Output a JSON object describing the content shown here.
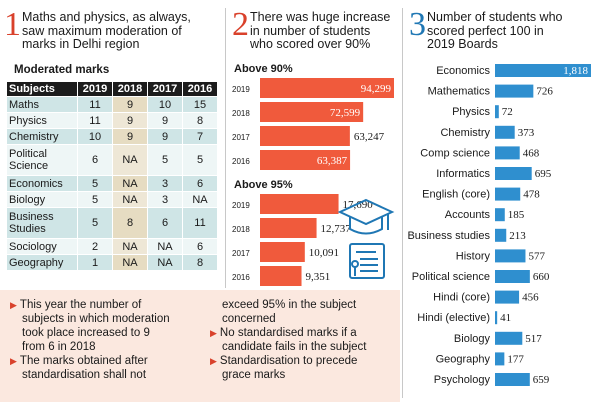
{
  "colors": {
    "red": "#f05a3c",
    "blue": "#2f8fcf",
    "table_dark": "#1c1c1c",
    "note_bg": "#fbe8df"
  },
  "panel1": {
    "number": "1",
    "intro": [
      "Maths and physics, as always,",
      "saw maximum moderation of",
      "marks in Delhi region"
    ],
    "table_title": "Moderated marks",
    "headers": [
      "Subjects",
      "2019",
      "2018",
      "2017",
      "2016"
    ],
    "rows": [
      [
        "Maths",
        "11",
        "9",
        "10",
        "15"
      ],
      [
        "Physics",
        "11",
        "9",
        "9",
        "8"
      ],
      [
        "Chemistry",
        "10",
        "9",
        "9",
        "7"
      ],
      [
        "Political Science",
        "6",
        "NA",
        "5",
        "5"
      ],
      [
        "Economics",
        "5",
        "NA",
        "3",
        "6"
      ],
      [
        "Biology",
        "5",
        "NA",
        "3",
        "NA"
      ],
      [
        "Business Studies",
        "5",
        "8",
        "6",
        "11"
      ],
      [
        "Sociology",
        "2",
        "NA",
        "NA",
        "6"
      ],
      [
        "Geography",
        "1",
        "NA",
        "NA",
        "8"
      ]
    ]
  },
  "notes": {
    "col1": [
      {
        "bullet": true,
        "text": "This year the number of"
      },
      {
        "bullet": false,
        "text": "subjects in which moderation"
      },
      {
        "bullet": false,
        "text": "took place increased to 9"
      },
      {
        "bullet": false,
        "text": "from 6 in 2018"
      },
      {
        "bullet": true,
        "text": "The marks obtained after"
      },
      {
        "bullet": false,
        "text": "standardisation shall not"
      }
    ],
    "col2": [
      {
        "bullet": false,
        "text": "exceed 95% in the subject"
      },
      {
        "bullet": false,
        "text": "concerned"
      },
      {
        "bullet": true,
        "text": "No standardised marks if a"
      },
      {
        "bullet": false,
        "text": "candidate fails in the subject"
      },
      {
        "bullet": true,
        "text": "Standardisation to precede"
      },
      {
        "bullet": false,
        "text": "grace marks"
      }
    ]
  },
  "panel2": {
    "number": "2",
    "intro": [
      "There was huge increase",
      "in number of students",
      "who scored over 90%"
    ],
    "icon": "graduation-cap-and-certificate-icon"
  },
  "panel3": {
    "number": "3",
    "intro": [
      "Number of students who",
      "scored perfect 100 in",
      "2019 Boards"
    ]
  },
  "chart_data": [
    {
      "type": "bar",
      "title": "Above 90%",
      "categories": [
        "2019",
        "2018",
        "2017",
        "2016"
      ],
      "values": [
        94299,
        72599,
        63247,
        63387
      ],
      "value_labels": [
        "94,299",
        "72,599",
        "63,247",
        "63,387"
      ],
      "orientation": "horizontal",
      "color": "#f05a3c"
    },
    {
      "type": "bar",
      "title": "Above 95%",
      "categories": [
        "2019",
        "2018",
        "2017",
        "2016"
      ],
      "values": [
        17690,
        12737,
        10091,
        9351
      ],
      "value_labels": [
        "17,690",
        "12,737",
        "10,091",
        "9,351"
      ],
      "orientation": "horizontal",
      "color": "#f05a3c"
    },
    {
      "type": "bar",
      "title": "",
      "categories": [
        "Economics",
        "Mathematics",
        "Physics",
        "Chemistry",
        "Comp science",
        "Informatics",
        "English (core)",
        "Accounts",
        "Business studies",
        "History",
        "Political science",
        "Hindi (core)",
        "Hindi (elective)",
        "Biology",
        "Geography",
        "Psychology"
      ],
      "values": [
        1818,
        726,
        72,
        373,
        468,
        695,
        478,
        185,
        213,
        577,
        660,
        456,
        41,
        517,
        177,
        659
      ],
      "value_labels": [
        "1,818",
        "726",
        "72",
        "373",
        "468",
        "695",
        "478",
        "185",
        "213",
        "577",
        "660",
        "456",
        "41",
        "517",
        "177",
        "659"
      ],
      "orientation": "horizontal",
      "color": "#2f8fcf"
    }
  ]
}
